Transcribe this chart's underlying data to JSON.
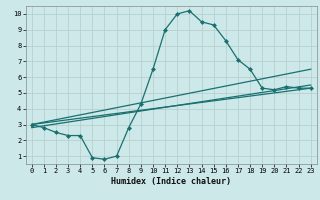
{
  "title": "",
  "xlabel": "Humidex (Indice chaleur)",
  "background_color": "#cce8e8",
  "grid_color": "#b8d0d0",
  "line_color": "#1a7070",
  "xlim": [
    -0.5,
    23.5
  ],
  "ylim": [
    0.5,
    10.5
  ],
  "xticks": [
    0,
    1,
    2,
    3,
    4,
    5,
    6,
    7,
    8,
    9,
    10,
    11,
    12,
    13,
    14,
    15,
    16,
    17,
    18,
    19,
    20,
    21,
    22,
    23
  ],
  "yticks": [
    1,
    2,
    3,
    4,
    5,
    6,
    7,
    8,
    9,
    10
  ],
  "series1_x": [
    0,
    1,
    2,
    3,
    4,
    5,
    6,
    7,
    8,
    9,
    10,
    11,
    12,
    13,
    14,
    15,
    16,
    17,
    18,
    19,
    20,
    21,
    22,
    23
  ],
  "series1_y": [
    3.0,
    2.8,
    2.5,
    2.3,
    2.3,
    0.9,
    0.8,
    1.0,
    2.8,
    4.3,
    6.5,
    9.0,
    10.0,
    10.2,
    9.5,
    9.3,
    8.3,
    7.1,
    6.5,
    5.3,
    5.2,
    5.4,
    5.3,
    5.3
  ],
  "series2_x": [
    0,
    23
  ],
  "series2_y": [
    3.0,
    5.3
  ],
  "series3_x": [
    0,
    23
  ],
  "series3_y": [
    2.8,
    5.5
  ],
  "series4_x": [
    0,
    23
  ],
  "series4_y": [
    3.0,
    6.5
  ]
}
